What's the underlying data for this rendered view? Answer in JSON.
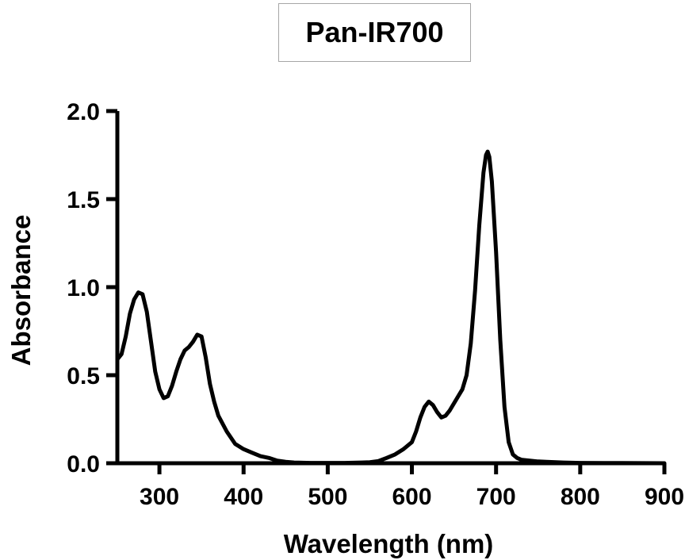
{
  "chart_data": {
    "type": "line",
    "title": "Pan-IR700",
    "xlabel": "Wavelength (nm)",
    "ylabel": "Absorbance",
    "xlim": [
      250,
      900
    ],
    "ylim": [
      0,
      2.0
    ],
    "xticks": [
      300,
      400,
      500,
      600,
      700,
      800,
      900
    ],
    "xtick_labels": [
      "300",
      "400",
      "500",
      "600",
      "700",
      "800",
      "900"
    ],
    "yticks": [
      0,
      0.5,
      1.0,
      1.5,
      2.0
    ],
    "ytick_labels": [
      "0.0",
      "0.5",
      "1.0",
      "1.5",
      "2.0"
    ],
    "grid": false,
    "series": [
      {
        "color": "#000000",
        "x": [
          250,
          255,
          260,
          265,
          270,
          275,
          280,
          285,
          290,
          295,
          300,
          305,
          310,
          315,
          320,
          325,
          330,
          335,
          340,
          345,
          350,
          355,
          360,
          365,
          370,
          380,
          390,
          400,
          410,
          420,
          430,
          440,
          450,
          460,
          480,
          500,
          520,
          540,
          550,
          560,
          570,
          580,
          590,
          600,
          605,
          610,
          615,
          620,
          625,
          630,
          635,
          640,
          645,
          650,
          655,
          660,
          665,
          670,
          675,
          680,
          685,
          688,
          690,
          692,
          695,
          700,
          705,
          710,
          715,
          720,
          725,
          730,
          740,
          750,
          760,
          780,
          800,
          850,
          900
        ],
        "y": [
          0.59,
          0.62,
          0.72,
          0.85,
          0.93,
          0.97,
          0.96,
          0.86,
          0.69,
          0.52,
          0.42,
          0.37,
          0.38,
          0.44,
          0.52,
          0.59,
          0.64,
          0.66,
          0.69,
          0.73,
          0.72,
          0.6,
          0.45,
          0.35,
          0.27,
          0.18,
          0.11,
          0.08,
          0.06,
          0.04,
          0.03,
          0.015,
          0.008,
          0.004,
          0.002,
          0.002,
          0.002,
          0.004,
          0.006,
          0.012,
          0.03,
          0.05,
          0.08,
          0.12,
          0.18,
          0.26,
          0.32,
          0.35,
          0.33,
          0.29,
          0.26,
          0.27,
          0.3,
          0.34,
          0.38,
          0.42,
          0.5,
          0.68,
          0.98,
          1.35,
          1.65,
          1.75,
          1.77,
          1.74,
          1.6,
          1.2,
          0.7,
          0.32,
          0.12,
          0.05,
          0.03,
          0.02,
          0.015,
          0.01,
          0.008,
          0.004,
          0.002,
          0.001,
          0.0
        ]
      }
    ]
  }
}
